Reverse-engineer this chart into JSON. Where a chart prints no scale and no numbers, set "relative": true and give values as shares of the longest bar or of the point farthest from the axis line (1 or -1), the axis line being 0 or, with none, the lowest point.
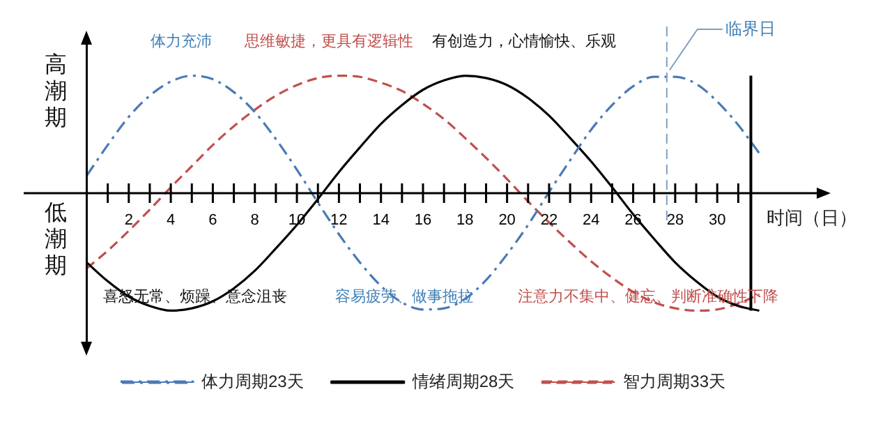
{
  "chart_data": {
    "type": "line",
    "relative": true,
    "xlabel": "时间（日）",
    "legend": "bottom",
    "grid": false,
    "x": [
      0,
      1,
      2,
      3,
      4,
      5,
      6,
      7,
      8,
      9,
      10,
      11,
      12,
      13,
      14,
      15,
      16,
      17,
      18,
      19,
      20,
      21,
      22,
      23,
      24,
      25,
      26,
      27,
      28,
      29,
      30,
      31,
      32
    ],
    "xlim": [
      -3,
      35
    ],
    "xticks": [
      {
        "value": 1,
        "label": null
      },
      2,
      {
        "value": 3,
        "label": null
      },
      4,
      {
        "value": 5,
        "label": null
      },
      6,
      {
        "value": 7,
        "label": null
      },
      8,
      {
        "value": 9,
        "label": null
      },
      10,
      {
        "value": 11,
        "label": null
      },
      12,
      {
        "value": 13,
        "label": null
      },
      14,
      {
        "value": 15,
        "label": null
      },
      16,
      {
        "value": 17,
        "label": null
      },
      18,
      {
        "value": 19,
        "label": null
      },
      20,
      {
        "value": 21,
        "label": null
      },
      22,
      {
        "value": 23,
        "label": null
      },
      24,
      {
        "value": 25,
        "label": null
      },
      26,
      {
        "value": 27,
        "label": null
      },
      28,
      {
        "value": 29,
        "label": null
      },
      30,
      {
        "value": 31,
        "label": null
      }
    ],
    "series": [
      {
        "name": "体力周期23天",
        "color": "#4a7ab5",
        "line_style": "dashdot",
        "values": [
          0.15,
          0.41,
          0.65,
          0.83,
          0.95,
          1.0,
          0.97,
          0.86,
          0.69,
          0.46,
          0.2,
          -0.08,
          -0.35,
          -0.59,
          -0.79,
          -0.93,
          -0.99,
          -0.98,
          -0.9,
          -0.74,
          -0.52,
          -0.27,
          0.01,
          0.28,
          0.54,
          0.75,
          0.91,
          0.99,
          0.99,
          0.93,
          0.78,
          0.58,
          0.34
        ]
      },
      {
        "name": "情绪周期28天",
        "color": "#000000",
        "line_style": "solid",
        "values": [
          -0.59,
          -0.75,
          -0.88,
          -0.96,
          -1.0,
          -0.98,
          -0.92,
          -0.81,
          -0.66,
          -0.47,
          -0.27,
          -0.05,
          0.18,
          0.39,
          0.59,
          0.75,
          0.88,
          0.96,
          1.0,
          0.98,
          0.92,
          0.81,
          0.66,
          0.47,
          0.27,
          0.05,
          -0.18,
          -0.39,
          -0.59,
          -0.75,
          -0.88,
          -0.96,
          -1.0
        ]
      },
      {
        "name": "智力周期33天",
        "color": "#c0504d",
        "line_style": "dashed",
        "values": [
          -0.64,
          -0.49,
          -0.32,
          -0.14,
          0.05,
          0.23,
          0.41,
          0.57,
          0.71,
          0.83,
          0.92,
          0.98,
          1.0,
          0.99,
          0.94,
          0.87,
          0.76,
          0.63,
          0.47,
          0.3,
          0.12,
          -0.07,
          -0.25,
          -0.42,
          -0.58,
          -0.72,
          -0.84,
          -0.93,
          -0.98,
          -1.0,
          -0.99,
          -0.94,
          -0.86
        ]
      }
    ],
    "ref_lines": [
      {
        "axis": "x",
        "value": 27.6,
        "label": "临界日",
        "color": "#7f9fbf",
        "line_style": "dashed"
      },
      {
        "axis": "x",
        "value": 31.6,
        "color": "#000000",
        "line_style": "solid"
      }
    ],
    "annotations": [
      "体力充沛",
      "思维敏捷，更具有逻辑性",
      "有创造力，心情愉快、乐观",
      "喜怒无常、烦躁、意念沮丧",
      "容易疲劳、做事拖拉",
      "注意力不集中、健忘、判断准确性下降",
      "高潮期",
      "低潮期"
    ]
  }
}
